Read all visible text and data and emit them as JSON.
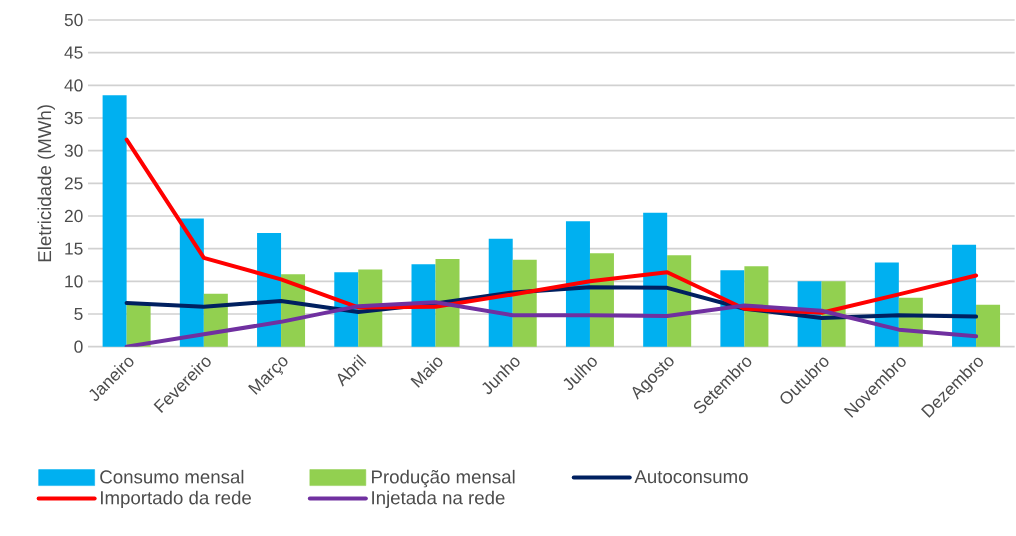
{
  "chart_data": {
    "type": "bar",
    "ylabel": "Eletricidade (MWh)",
    "categories": [
      "Janeiro",
      "Fevereiro",
      "Março",
      "Abril",
      "Maio",
      "Junho",
      "Julho",
      "Agosto",
      "Setembro",
      "Outubro",
      "Novembro",
      "Dezembro"
    ],
    "series": [
      {
        "name": "Consumo mensal",
        "color": "#00b0f0",
        "values": [
          38.5,
          19.6,
          17.4,
          11.4,
          12.6,
          16.5,
          19.2,
          20.5,
          11.7,
          10.0,
          12.9,
          15.6
        ]
      },
      {
        "name": "Produção mensal",
        "color": "#92d050",
        "values": [
          6.6,
          8.1,
          11.1,
          11.8,
          13.4,
          13.3,
          14.3,
          14.0,
          12.3,
          10.0,
          7.5,
          6.4
        ]
      },
      {
        "name": "Autoconsumo",
        "type": "line",
        "color": "#002060",
        "values": [
          6.7,
          6.1,
          7.0,
          5.3,
          6.6,
          8.3,
          9.1,
          9.0,
          5.8,
          4.4,
          4.8,
          4.6
        ]
      },
      {
        "name": "Importado da rede",
        "type": "line",
        "color": "#ff0000",
        "values": [
          31.7,
          13.6,
          10.3,
          6.0,
          6.1,
          8.0,
          10.0,
          11.4,
          5.8,
          5.2,
          8.0,
          10.9
        ]
      },
      {
        "name": "Injetada na rede",
        "type": "line",
        "color": "#7030a0",
        "values": [
          0.0,
          1.9,
          3.8,
          6.2,
          6.8,
          4.8,
          4.8,
          4.7,
          6.3,
          5.5,
          2.6,
          1.6
        ]
      }
    ],
    "ylim": [
      0,
      50
    ],
    "yticks": [
      0,
      5,
      10,
      15,
      20,
      25,
      30,
      35,
      40,
      45,
      50
    ],
    "grid": "y",
    "legend": "bottom",
    "marker": "none",
    "line_style": "solid"
  }
}
